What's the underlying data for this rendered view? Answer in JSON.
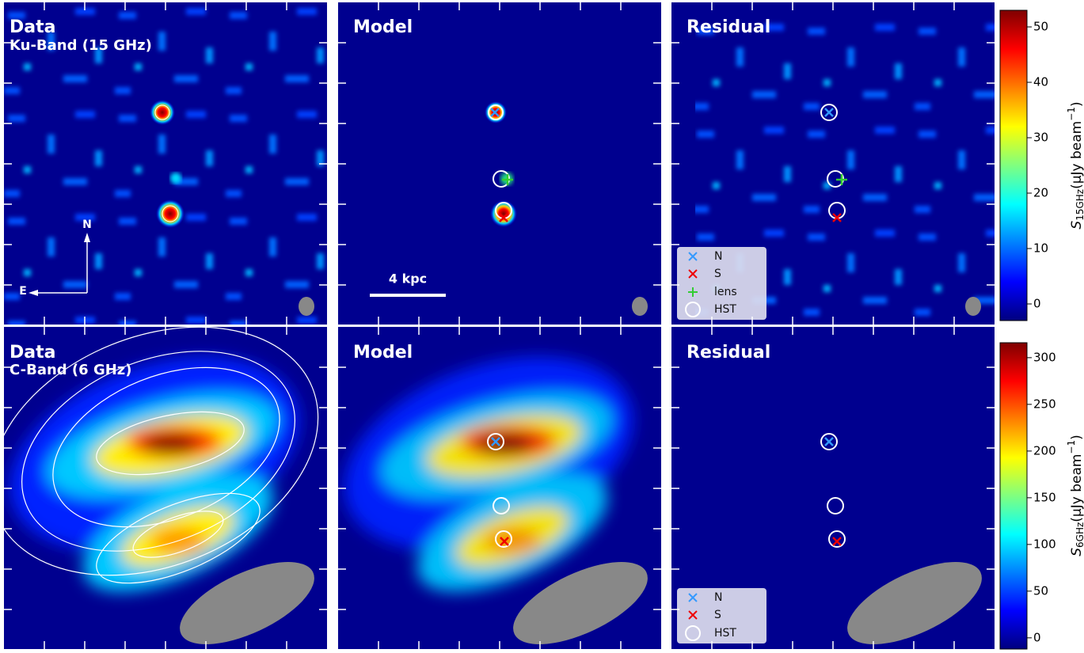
{
  "panels": [
    {
      "title": "Data",
      "subtitle": "Ku-Band (15 GHz)"
    },
    {
      "title": "Model"
    },
    {
      "title": "Residual"
    },
    {
      "title": "Data",
      "subtitle": "C-Band (6 GHz)"
    },
    {
      "title": "Model"
    },
    {
      "title": "Residual"
    }
  ],
  "compass": {
    "north": "N",
    "east": "E"
  },
  "scale_bar": "4 kpc",
  "legends": [
    [
      "N",
      "S",
      "lens",
      "HST"
    ],
    [
      "N",
      "S",
      "HST"
    ]
  ],
  "colorbars": [
    {
      "label": {
        "symbol": "S",
        "subscript": "15GHz",
        "unit": "(μJy beam",
        "superscript": "−1",
        "close": ")"
      },
      "lim": [
        -3,
        53
      ],
      "ticks": [
        0,
        10,
        20,
        30,
        40,
        50
      ]
    },
    {
      "label": {
        "symbol": "S",
        "subscript": "6GHz",
        "unit": "(μJy beam",
        "superscript": "−1",
        "close": ")"
      },
      "lim": [
        -12,
        316
      ],
      "ticks": [
        0,
        50,
        100,
        150,
        200,
        250,
        300
      ]
    }
  ]
}
